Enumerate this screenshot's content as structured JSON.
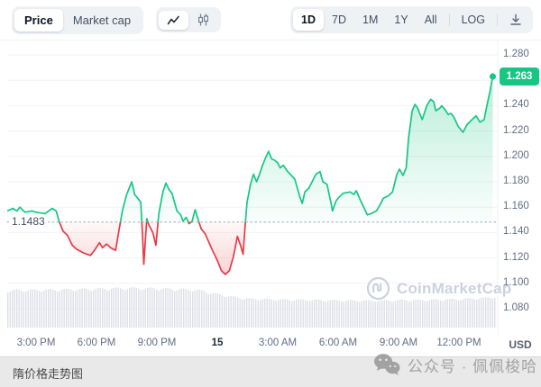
{
  "toolbar": {
    "metric_toggle": {
      "options": [
        "Price",
        "Market cap"
      ],
      "selected": "Price"
    },
    "chart_type_toggle": {
      "options": [
        "line-chart",
        "candlestick"
      ],
      "selected": "line-chart"
    },
    "ranges": {
      "options": [
        "1D",
        "7D",
        "1M",
        "1Y",
        "All"
      ],
      "selected": "1D"
    },
    "log_label": "LOG"
  },
  "watermark": {
    "brand": "CoinMarketCap"
  },
  "footer": {
    "title": "隋价格走势图",
    "watermark_text": "公众号 · 佩佩梭哈"
  },
  "chart_data": {
    "type": "area",
    "unit_label": "USD",
    "x_unit": "hours since 13:30 (previous day)",
    "previous_close": {
      "label": "1.1483",
      "value": 1.1483
    },
    "last_price": {
      "label": "1.263",
      "value": 1.263
    },
    "ylim": [
      1.07,
      1.29
    ],
    "grid": true,
    "y_ticks": [
      {
        "label": "1.280",
        "value": 1.28
      },
      {
        "label": "1.240",
        "value": 1.24
      },
      {
        "label": "1.220",
        "value": 1.22
      },
      {
        "label": "1.200",
        "value": 1.2
      },
      {
        "label": "1.180",
        "value": 1.18
      },
      {
        "label": "1.160",
        "value": 1.16
      },
      {
        "label": "1.140",
        "value": 1.14
      },
      {
        "label": "1.120",
        "value": 1.12
      },
      {
        "label": "1.100",
        "value": 1.1
      },
      {
        "label": "1.080",
        "value": 1.08
      }
    ],
    "grid_values": [
      1.28,
      1.26,
      1.24,
      1.22,
      1.2,
      1.18,
      1.16,
      1.14,
      1.12,
      1.1,
      1.08
    ],
    "x_ticks": [
      {
        "label": "3:00 PM",
        "t": 1.5
      },
      {
        "label": "6:00 PM",
        "t": 4.5
      },
      {
        "label": "9:00 PM",
        "t": 7.5
      },
      {
        "label": "15",
        "t": 10.5,
        "bold": true
      },
      {
        "label": "3:00 AM",
        "t": 13.5
      },
      {
        "label": "6:00 AM",
        "t": 16.5
      },
      {
        "label": "9:00 AM",
        "t": 19.5
      },
      {
        "label": "12:00 PM",
        "t": 22.5
      }
    ],
    "series": [
      {
        "name": "price",
        "points": [
          [
            0.07,
            1.157
          ],
          [
            0.35,
            1.159
          ],
          [
            0.55,
            1.157
          ],
          [
            0.7,
            1.16
          ],
          [
            0.95,
            1.156
          ],
          [
            1.3,
            1.157
          ],
          [
            1.5,
            1.156
          ],
          [
            1.95,
            1.155
          ],
          [
            2.3,
            1.159
          ],
          [
            2.5,
            1.157
          ],
          [
            2.66,
            1.148
          ],
          [
            2.85,
            1.141
          ],
          [
            3.05,
            1.138
          ],
          [
            3.3,
            1.13
          ],
          [
            3.5,
            1.127
          ],
          [
            3.85,
            1.124
          ],
          [
            4.2,
            1.122
          ],
          [
            4.4,
            1.126
          ],
          [
            4.65,
            1.132
          ],
          [
            4.8,
            1.128
          ],
          [
            5.0,
            1.131
          ],
          [
            5.2,
            1.128
          ],
          [
            5.45,
            1.126
          ],
          [
            5.62,
            1.142
          ],
          [
            5.8,
            1.158
          ],
          [
            6.0,
            1.17
          ],
          [
            6.25,
            1.18
          ],
          [
            6.4,
            1.17
          ],
          [
            6.55,
            1.167
          ],
          [
            6.7,
            1.164
          ],
          [
            6.78,
            1.14
          ],
          [
            6.85,
            1.115
          ],
          [
            7.0,
            1.151
          ],
          [
            7.1,
            1.146
          ],
          [
            7.3,
            1.14
          ],
          [
            7.45,
            1.13
          ],
          [
            7.6,
            1.155
          ],
          [
            7.8,
            1.172
          ],
          [
            7.95,
            1.179
          ],
          [
            8.1,
            1.174
          ],
          [
            8.25,
            1.171
          ],
          [
            8.5,
            1.157
          ],
          [
            8.68,
            1.154
          ],
          [
            8.8,
            1.149
          ],
          [
            8.95,
            1.152
          ],
          [
            9.1,
            1.147
          ],
          [
            9.25,
            1.149
          ],
          [
            9.4,
            1.158
          ],
          [
            9.55,
            1.15
          ],
          [
            9.7,
            1.143
          ],
          [
            9.9,
            1.139
          ],
          [
            10.2,
            1.128
          ],
          [
            10.5,
            1.118
          ],
          [
            10.7,
            1.11
          ],
          [
            10.9,
            1.107
          ],
          [
            11.1,
            1.11
          ],
          [
            11.3,
            1.121
          ],
          [
            11.5,
            1.137
          ],
          [
            11.65,
            1.13
          ],
          [
            11.78,
            1.123
          ],
          [
            11.88,
            1.145
          ],
          [
            11.98,
            1.164
          ],
          [
            12.15,
            1.178
          ],
          [
            12.3,
            1.186
          ],
          [
            12.45,
            1.18
          ],
          [
            12.6,
            1.186
          ],
          [
            12.75,
            1.193
          ],
          [
            12.9,
            1.199
          ],
          [
            13.05,
            1.204
          ],
          [
            13.2,
            1.198
          ],
          [
            13.35,
            1.197
          ],
          [
            13.5,
            1.195
          ],
          [
            13.62,
            1.191
          ],
          [
            13.78,
            1.193
          ],
          [
            14.0,
            1.188
          ],
          [
            14.35,
            1.182
          ],
          [
            14.6,
            1.168
          ],
          [
            14.72,
            1.163
          ],
          [
            14.85,
            1.172
          ],
          [
            15.05,
            1.175
          ],
          [
            15.4,
            1.186
          ],
          [
            15.6,
            1.188
          ],
          [
            15.75,
            1.18
          ],
          [
            15.95,
            1.178
          ],
          [
            16.15,
            1.163
          ],
          [
            16.22,
            1.157
          ],
          [
            16.4,
            1.165
          ],
          [
            16.5,
            1.167
          ],
          [
            16.75,
            1.171
          ],
          [
            17.1,
            1.172
          ],
          [
            17.28,
            1.17
          ],
          [
            17.4,
            1.173
          ],
          [
            17.62,
            1.165
          ],
          [
            17.95,
            1.154
          ],
          [
            18.15,
            1.155
          ],
          [
            18.4,
            1.157
          ],
          [
            18.55,
            1.161
          ],
          [
            18.75,
            1.167
          ],
          [
            19.0,
            1.169
          ],
          [
            19.2,
            1.172
          ],
          [
            19.42,
            1.186
          ],
          [
            19.55,
            1.19
          ],
          [
            19.72,
            1.185
          ],
          [
            19.88,
            1.191
          ],
          [
            20.0,
            1.215
          ],
          [
            20.18,
            1.236
          ],
          [
            20.32,
            1.241
          ],
          [
            20.45,
            1.238
          ],
          [
            20.55,
            1.234
          ],
          [
            20.68,
            1.229
          ],
          [
            20.9,
            1.24
          ],
          [
            21.1,
            1.245
          ],
          [
            21.25,
            1.243
          ],
          [
            21.35,
            1.236
          ],
          [
            21.55,
            1.238
          ],
          [
            21.65,
            1.24
          ],
          [
            21.8,
            1.237
          ],
          [
            21.97,
            1.233
          ],
          [
            22.1,
            1.234
          ],
          [
            22.25,
            1.231
          ],
          [
            22.45,
            1.224
          ],
          [
            22.7,
            1.219
          ],
          [
            22.9,
            1.225
          ],
          [
            23.15,
            1.229
          ],
          [
            23.35,
            1.232
          ],
          [
            23.55,
            1.227
          ],
          [
            23.75,
            1.229
          ],
          [
            23.9,
            1.241
          ],
          [
            24.05,
            1.252
          ],
          [
            24.18,
            1.263
          ]
        ]
      }
    ],
    "volume_profile": [
      [
        0.07,
        0.94
      ],
      [
        1.5,
        0.95
      ],
      [
        3.0,
        0.96
      ],
      [
        4.5,
        0.98
      ],
      [
        6.0,
        1.0
      ],
      [
        7.5,
        0.99
      ],
      [
        8.6,
        0.97
      ],
      [
        9.3,
        0.96
      ],
      [
        9.8,
        0.92
      ],
      [
        10.5,
        0.84
      ],
      [
        11.2,
        0.78
      ],
      [
        12.0,
        0.73
      ],
      [
        13.5,
        0.71
      ],
      [
        15.0,
        0.7
      ],
      [
        16.5,
        0.69
      ],
      [
        18.0,
        0.68
      ],
      [
        19.5,
        0.69
      ],
      [
        21.0,
        0.7
      ],
      [
        22.5,
        0.72
      ],
      [
        23.5,
        0.74
      ],
      [
        24.18,
        0.77
      ]
    ],
    "colors": {
      "up": "#16c784",
      "down": "#ea3943",
      "volume": "#dcdfe7",
      "grid": "#f0f2f5",
      "baseline_dots": "#b9c1ce",
      "badge_bg": "#16c784",
      "axis_text": "#616e85",
      "watermark": "#c9d0de"
    }
  }
}
